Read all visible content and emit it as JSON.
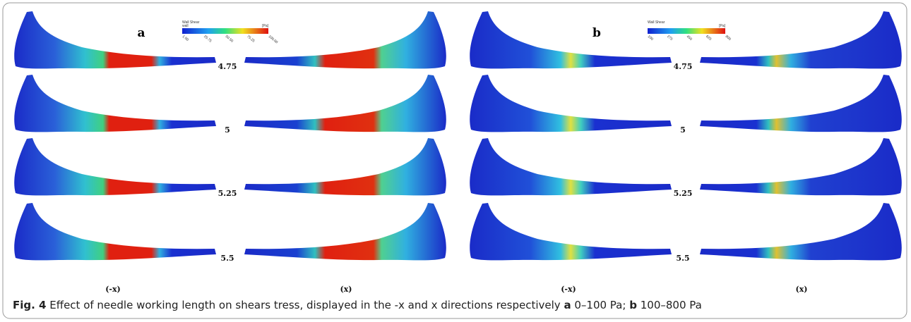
{
  "panels": [
    {
      "label": "a",
      "colorbar": {
        "title": "Wall Shear",
        "subtitle": "wall",
        "unit": "[Pa]",
        "ticks": [
          "1.00",
          "25.75",
          "50.50",
          "75.25",
          "100.00"
        ]
      },
      "rows": [
        "4.75",
        "5",
        "5.25",
        "5.5"
      ],
      "columns": [
        "(-x)",
        "(x)"
      ]
    },
    {
      "label": "b",
      "colorbar": {
        "title": "Wall Shear",
        "unit": "[Pa]",
        "ticks": [
          "100",
          "275",
          "450",
          "625",
          "800"
        ]
      },
      "rows": [
        "4.75",
        "5",
        "5.25",
        "5.5"
      ],
      "columns": [
        "(-x)",
        "(x)"
      ]
    }
  ],
  "caption": {
    "figure": "Fig. 4",
    "text": "Effect of needle working length on shears tress, displayed in the -x and x directions respectively",
    "a": "a",
    "a_range": "0–100 Pa;",
    "b": "b",
    "b_range": "100–800 Pa"
  }
}
